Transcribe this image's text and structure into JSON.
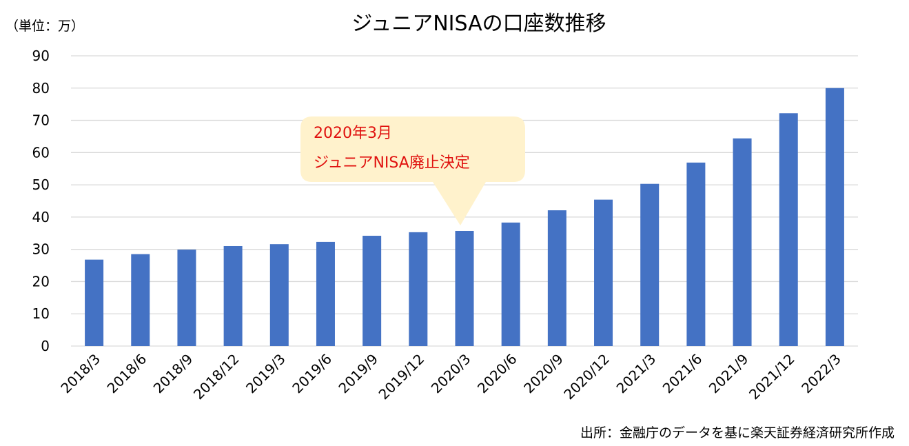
{
  "chart_data": {
    "type": "bar",
    "title": "ジュニアNISAの口座数推移",
    "unit_label": "（単位：万）",
    "categories": [
      "2018/3",
      "2018/6",
      "2018/9",
      "2018/12",
      "2019/3",
      "2019/6",
      "2019/9",
      "2019/12",
      "2020/3",
      "2020/6",
      "2020/9",
      "2020/12",
      "2021/3",
      "2021/6",
      "2021/9",
      "2021/12",
      "2022/3"
    ],
    "values": [
      26.8,
      28.5,
      29.9,
      31.0,
      31.6,
      32.3,
      34.2,
      35.3,
      35.7,
      38.3,
      42.1,
      45.4,
      50.3,
      56.9,
      64.4,
      72.2,
      80.0
    ],
    "ylim": [
      0,
      90
    ],
    "yticks": [
      "0",
      "10",
      "20",
      "30",
      "40",
      "50",
      "60",
      "70",
      "80",
      "90"
    ],
    "grid": true,
    "bar_color": "#4472c4",
    "annotation": {
      "lines": [
        "2020年3月",
        "ジュニアNISA廃止決定"
      ],
      "target_category": "2020/3",
      "text_color": "#e0120f",
      "background_color": "#fff2cc"
    }
  },
  "source_note": "出所：金融庁のデータを基に楽天証券経済研究所作成"
}
